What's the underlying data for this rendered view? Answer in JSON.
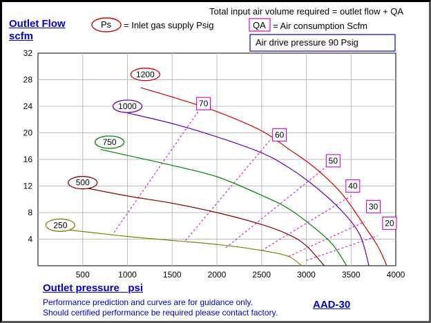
{
  "header": {
    "total_note": "Total input air volume required = outlet flow + QA",
    "ps_symbol": "Ps",
    "ps_text": "= Inlet gas supply  Psig",
    "qa_symbol": "QA",
    "qa_text": "= Air consumption  Scfm",
    "drive_pressure": "Air drive pressure  90 Psig"
  },
  "footer": {
    "note_line1": "Performance prediction and curves are for guidance only.",
    "note_line2": "Should certified performance be required please contact factory.",
    "model": "AAD-30"
  },
  "chart_data": {
    "type": "line",
    "ylabel_line1": "Outlet Flow",
    "ylabel_line2": "scfm",
    "xlabel": "Outlet pressure   psi",
    "xlim": [
      0,
      4000
    ],
    "ylim": [
      0,
      32
    ],
    "x_ticks": [
      500,
      1000,
      1500,
      2000,
      2500,
      3000,
      3500,
      4000
    ],
    "y_ticks": [
      4,
      8,
      12,
      16,
      20,
      24,
      28,
      32
    ],
    "grid": true,
    "series": [
      {
        "name": "250",
        "color": "#808000",
        "points": [
          [
            200,
            5.6
          ],
          [
            600,
            5.0
          ],
          [
            1000,
            4.4
          ],
          [
            1500,
            3.8
          ],
          [
            2000,
            3.2
          ],
          [
            2500,
            2.3
          ],
          [
            2800,
            1.4
          ],
          [
            2950,
            0
          ]
        ]
      },
      {
        "name": "500",
        "color": "#800000",
        "points": [
          [
            500,
            11.8
          ],
          [
            1000,
            10.5
          ],
          [
            1500,
            9.4
          ],
          [
            2000,
            8.0
          ],
          [
            2500,
            6.2
          ],
          [
            2800,
            4.7
          ],
          [
            3000,
            3.0
          ],
          [
            3200,
            0
          ]
        ]
      },
      {
        "name": "750",
        "color": "#008000",
        "points": [
          [
            700,
            17.5
          ],
          [
            1000,
            16.6
          ],
          [
            1500,
            15.1
          ],
          [
            2000,
            13.4
          ],
          [
            2500,
            10.6
          ],
          [
            2800,
            8.6
          ],
          [
            3100,
            5.6
          ],
          [
            3300,
            3.1
          ],
          [
            3450,
            0
          ]
        ]
      },
      {
        "name": "1000",
        "color": "#6600aa",
        "points": [
          [
            1000,
            23.0
          ],
          [
            1500,
            21.4
          ],
          [
            2000,
            19.4
          ],
          [
            2500,
            17.0
          ],
          [
            2800,
            14.8
          ],
          [
            3100,
            11.9
          ],
          [
            3400,
            8.2
          ],
          [
            3600,
            4.6
          ],
          [
            3700,
            0
          ]
        ]
      },
      {
        "name": "1200",
        "color": "#cc0000",
        "points": [
          [
            1150,
            26.8
          ],
          [
            1500,
            25.4
          ],
          [
            2000,
            23.2
          ],
          [
            2500,
            20.3
          ],
          [
            2800,
            17.6
          ],
          [
            3100,
            14.7
          ],
          [
            3400,
            10.8
          ],
          [
            3650,
            6.0
          ],
          [
            3800,
            2.9
          ],
          [
            3900,
            0
          ]
        ]
      }
    ],
    "qa_lines": [
      {
        "label": "70",
        "points": [
          [
            850,
            5.0
          ],
          [
            1800,
            23.4
          ]
        ]
      },
      {
        "label": "60",
        "points": [
          [
            1650,
            3.8
          ],
          [
            2600,
            19.0
          ]
        ]
      },
      {
        "label": "50",
        "points": [
          [
            2100,
            2.7
          ],
          [
            3250,
            15.2
          ]
        ]
      },
      {
        "label": "40",
        "points": [
          [
            2500,
            2.3
          ],
          [
            3500,
            10.5
          ]
        ]
      },
      {
        "label": "30",
        "points": [
          [
            2800,
            1.4
          ],
          [
            3650,
            6.6
          ]
        ]
      },
      {
        "label": "20",
        "points": [
          [
            3000,
            0.8
          ],
          [
            3800,
            4.5
          ]
        ]
      }
    ],
    "qa_label_positions": [
      [
        1850,
        24.4
      ],
      [
        2700,
        19.7
      ],
      [
        3300,
        15.8
      ],
      [
        3520,
        12.0
      ],
      [
        3750,
        8.9
      ],
      [
        3930,
        6.4
      ]
    ],
    "curve_label_positions": [
      [
        1200,
        28.8
      ],
      [
        1000,
        24.0
      ],
      [
        800,
        18.6
      ],
      [
        500,
        12.5
      ],
      [
        250,
        6.1
      ]
    ]
  }
}
